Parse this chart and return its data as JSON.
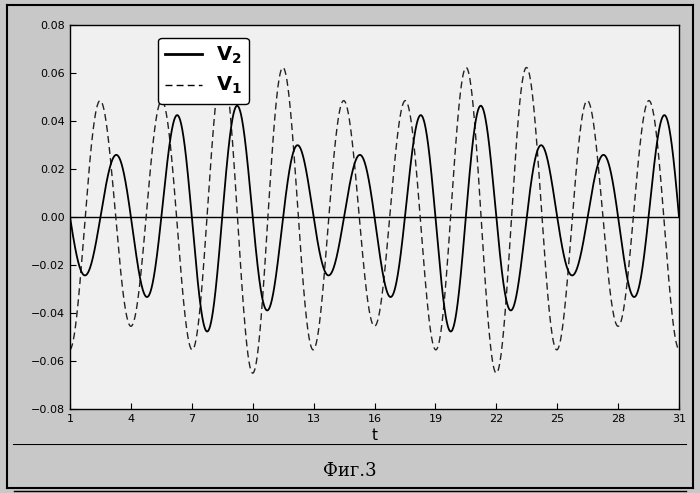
{
  "title": "Фиг.3",
  "xlabel": "t",
  "xlim": [
    1,
    31
  ],
  "ylim": [
    -0.08,
    0.08
  ],
  "xticks": [
    1,
    4,
    7,
    10,
    13,
    16,
    19,
    22,
    25,
    28,
    31
  ],
  "yticks": [
    -0.08,
    -0.06,
    -0.04,
    -0.02,
    0,
    0.02,
    0.04,
    0.06,
    0.08
  ],
  "background_color": "#c8c8c8",
  "plot_bg_color": "#f0f0f0",
  "line_color_v2": "#000000",
  "line_color_v1": "#222222",
  "n_points": 3000,
  "omega_fast": 2.094395,
  "omega_slow": 0.5235988,
  "v1_amp": 0.065,
  "v2_amp": 0.05,
  "v1_phase_fast": -1.5707963,
  "v1_phase_slow": 1.5707963,
  "v2_phase_fast": -0.5235988,
  "v2_phase_slow": 0.0
}
